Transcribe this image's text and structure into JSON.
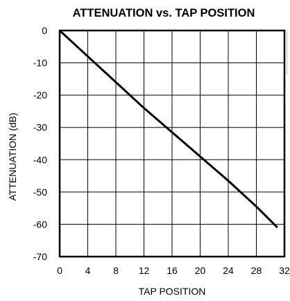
{
  "chart_data": {
    "type": "line",
    "title": "ATTENUATION vs. TAP POSITION",
    "xlabel": "TAP POSITION",
    "ylabel": "ATTENUATION (dB)",
    "xlim": [
      0,
      32
    ],
    "ylim": [
      -70,
      0
    ],
    "xticks": [
      0,
      4,
      8,
      12,
      16,
      20,
      24,
      28,
      32
    ],
    "yticks": [
      0,
      -10,
      -20,
      -30,
      -40,
      -50,
      -60,
      -70
    ],
    "xtick_labels": [
      "0",
      "4",
      "8",
      "12",
      "16",
      "20",
      "24",
      "28",
      "32"
    ],
    "ytick_labels": [
      "0",
      "-10",
      "-20",
      "-30",
      "-40",
      "-50",
      "-60",
      "-70"
    ],
    "grid": true,
    "series": [
      {
        "x": [
          0,
          4,
          8,
          12,
          16,
          20,
          24,
          28,
          31
        ],
        "y": [
          0,
          -8,
          -16,
          -24,
          -31.5,
          -39,
          -46.5,
          -54.5,
          -61
        ],
        "color": "#000000"
      }
    ]
  }
}
